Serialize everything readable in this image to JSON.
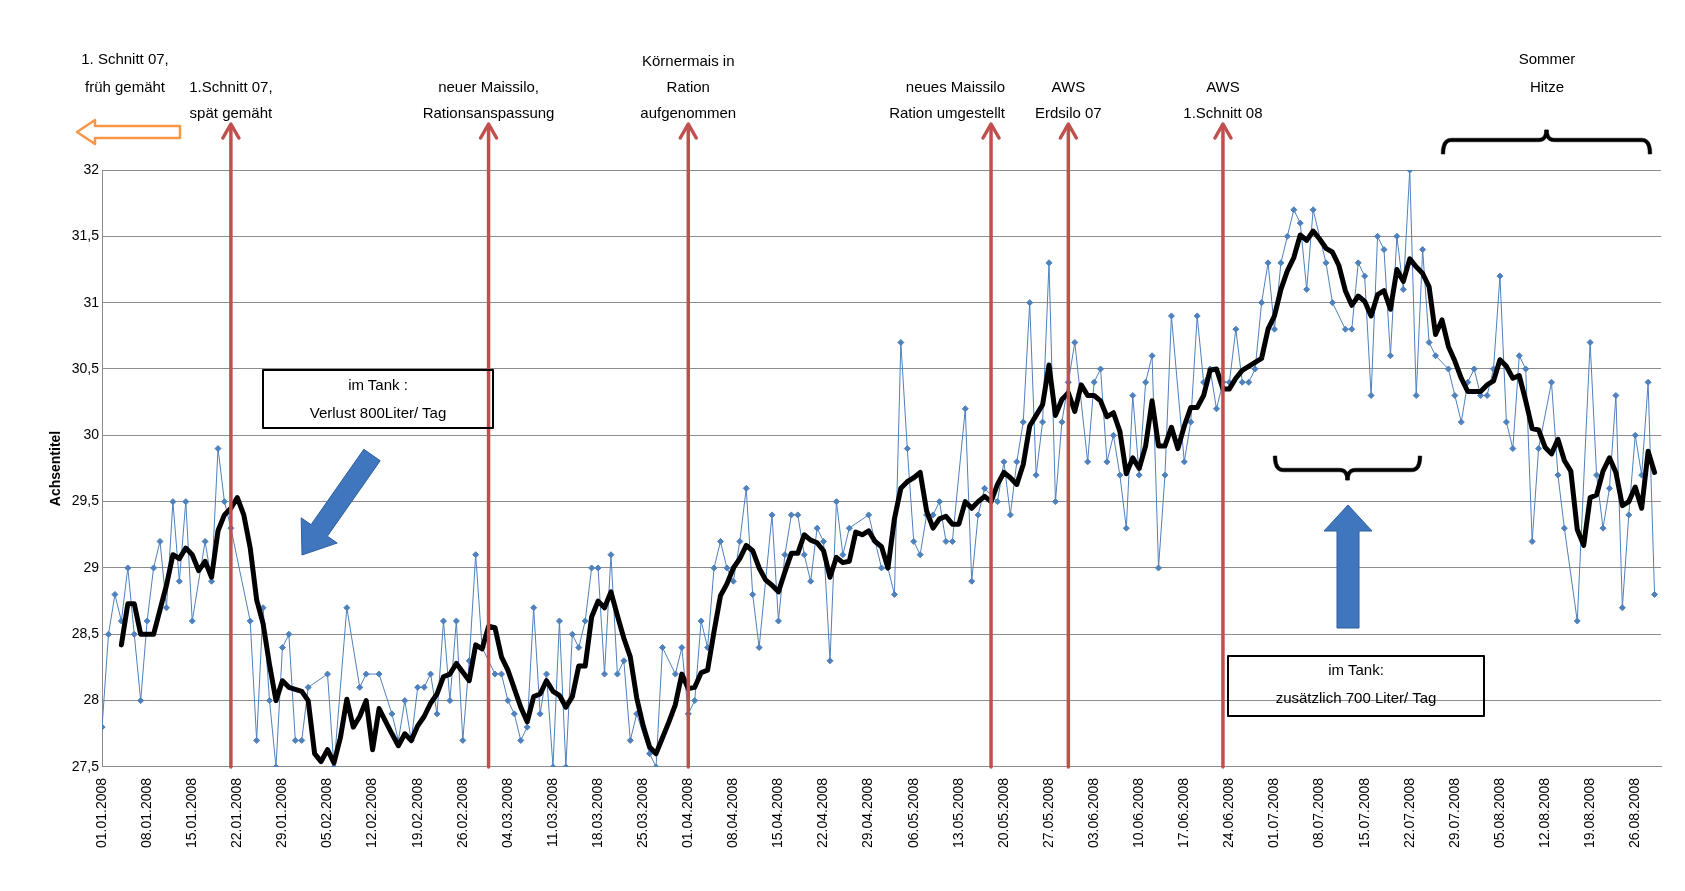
{
  "chart_data": {
    "type": "line",
    "ylabel": "Achsentitel",
    "xlim": [
      "2008-01-01",
      "2008-08-30"
    ],
    "xticks": [
      {
        "value": "2008-01-01",
        "label": "01.01.2008"
      },
      {
        "value": "2008-01-08",
        "label": "08.01.2008"
      },
      {
        "value": "2008-01-15",
        "label": "15.01.2008"
      },
      {
        "value": "2008-01-22",
        "label": "22.01.2008"
      },
      {
        "value": "2008-01-29",
        "label": "29.01.2008"
      },
      {
        "value": "2008-02-05",
        "label": "05.02.2008"
      },
      {
        "value": "2008-02-12",
        "label": "12.02.2008"
      },
      {
        "value": "2008-02-19",
        "label": "19.02.2008"
      },
      {
        "value": "2008-02-26",
        "label": "26.02.2008"
      },
      {
        "value": "2008-03-04",
        "label": "04.03.2008"
      },
      {
        "value": "2008-03-11",
        "label": "11.03.2008"
      },
      {
        "value": "2008-03-18",
        "label": "18.03.2008"
      },
      {
        "value": "2008-03-25",
        "label": "25.03.2008"
      },
      {
        "value": "2008-04-01",
        "label": "01.04.2008"
      },
      {
        "value": "2008-04-08",
        "label": "08.04.2008"
      },
      {
        "value": "2008-04-15",
        "label": "15.04.2008"
      },
      {
        "value": "2008-04-22",
        "label": "22.04.2008"
      },
      {
        "value": "2008-04-29",
        "label": "29.04.2008"
      },
      {
        "value": "2008-05-06",
        "label": "06.05.2008"
      },
      {
        "value": "2008-05-13",
        "label": "13.05.2008"
      },
      {
        "value": "2008-05-20",
        "label": "20.05.2008"
      },
      {
        "value": "2008-05-27",
        "label": "27.05.2008"
      },
      {
        "value": "2008-06-03",
        "label": "03.06.2008"
      },
      {
        "value": "2008-06-10",
        "label": "10.06.2008"
      },
      {
        "value": "2008-06-17",
        "label": "17.06.2008"
      },
      {
        "value": "2008-06-24",
        "label": "24.06.2008"
      },
      {
        "value": "2008-07-01",
        "label": "01.07.2008"
      },
      {
        "value": "2008-07-08",
        "label": "08.07.2008"
      },
      {
        "value": "2008-07-15",
        "label": "15.07.2008"
      },
      {
        "value": "2008-07-22",
        "label": "22.07.2008"
      },
      {
        "value": "2008-07-29",
        "label": "29.07.2008"
      },
      {
        "value": "2008-08-05",
        "label": "05.08.2008"
      },
      {
        "value": "2008-08-12",
        "label": "12.08.2008"
      },
      {
        "value": "2008-08-19",
        "label": "19.08.2008"
      },
      {
        "value": "2008-08-26",
        "label": "26.08.2008"
      }
    ],
    "ylim": [
      27.5,
      32
    ],
    "yticks": [
      {
        "value": 27.5,
        "label": "27,5"
      },
      28,
      {
        "value": 28.5,
        "label": "28,5"
      },
      29,
      {
        "value": 29.5,
        "label": "29,5"
      },
      30,
      {
        "value": 30.5,
        "label": "30,5"
      },
      31,
      {
        "value": 31.5,
        "label": "31,5"
      },
      32
    ],
    "grid": "y",
    "legend": false,
    "series": [
      {
        "color": "#4f81bd",
        "marker": "diamond",
        "x": [
          "2008-01-01",
          "2008-01-02",
          "2008-01-03",
          "2008-01-04",
          "2008-01-05",
          "2008-01-06",
          "2008-01-07",
          "2008-01-08",
          "2008-01-09",
          "2008-01-10",
          "2008-01-11",
          "2008-01-12",
          "2008-01-13",
          "2008-01-14",
          "2008-01-15",
          "2008-01-17",
          "2008-01-18",
          "2008-01-19",
          "2008-01-20",
          "2008-01-21",
          "2008-01-24",
          "2008-01-25",
          "2008-01-26",
          "2008-01-27",
          "2008-01-28",
          "2008-01-29",
          "2008-01-30",
          "2008-01-31",
          "2008-02-01",
          "2008-02-02",
          "2008-02-05",
          "2008-02-06",
          "2008-02-08",
          "2008-02-10",
          "2008-02-11",
          "2008-02-13",
          "2008-02-15",
          "2008-02-16",
          "2008-02-17",
          "2008-02-18",
          "2008-02-19",
          "2008-02-20",
          "2008-02-21",
          "2008-02-22",
          "2008-02-23",
          "2008-02-24",
          "2008-02-25",
          "2008-02-26",
          "2008-02-27",
          "2008-02-28",
          "2008-02-29",
          "2008-03-02",
          "2008-03-03",
          "2008-03-04",
          "2008-03-05",
          "2008-03-06",
          "2008-03-07",
          "2008-03-08",
          "2008-03-09",
          "2008-03-10",
          "2008-03-11",
          "2008-03-12",
          "2008-03-13",
          "2008-03-14",
          "2008-03-15",
          "2008-03-16",
          "2008-03-17",
          "2008-03-18",
          "2008-03-19",
          "2008-03-20",
          "2008-03-21",
          "2008-03-22",
          "2008-03-23",
          "2008-03-24",
          "2008-03-26",
          "2008-03-27",
          "2008-03-28",
          "2008-03-30",
          "2008-03-31",
          "2008-04-01",
          "2008-04-02",
          "2008-04-03",
          "2008-04-04",
          "2008-04-05",
          "2008-04-06",
          "2008-04-07",
          "2008-04-08",
          "2008-04-09",
          "2008-04-10",
          "2008-04-11",
          "2008-04-12",
          "2008-04-14",
          "2008-04-15",
          "2008-04-16",
          "2008-04-17",
          "2008-04-18",
          "2008-04-19",
          "2008-04-20",
          "2008-04-21",
          "2008-04-22",
          "2008-04-23",
          "2008-04-24",
          "2008-04-25",
          "2008-04-26",
          "2008-04-29",
          "2008-04-30",
          "2008-05-01",
          "2008-05-02",
          "2008-05-03",
          "2008-05-04",
          "2008-05-05",
          "2008-05-06",
          "2008-05-07",
          "2008-05-08",
          "2008-05-09",
          "2008-05-10",
          "2008-05-11",
          "2008-05-12",
          "2008-05-14",
          "2008-05-15",
          "2008-05-16",
          "2008-05-17",
          "2008-05-19",
          "2008-05-20",
          "2008-05-21",
          "2008-05-22",
          "2008-05-23",
          "2008-05-24",
          "2008-05-25",
          "2008-05-26",
          "2008-05-27",
          "2008-05-28",
          "2008-05-29",
          "2008-05-30",
          "2008-05-31",
          "2008-06-02",
          "2008-06-03",
          "2008-06-04",
          "2008-06-05",
          "2008-06-06",
          "2008-06-07",
          "2008-06-08",
          "2008-06-09",
          "2008-06-10",
          "2008-06-11",
          "2008-06-12",
          "2008-06-13",
          "2008-06-14",
          "2008-06-15",
          "2008-06-17",
          "2008-06-18",
          "2008-06-19",
          "2008-06-20",
          "2008-06-21",
          "2008-06-22",
          "2008-06-23",
          "2008-06-24",
          "2008-06-25",
          "2008-06-26",
          "2008-06-27",
          "2008-06-28",
          "2008-06-29",
          "2008-06-30",
          "2008-07-01",
          "2008-07-02",
          "2008-07-03",
          "2008-07-04",
          "2008-07-05",
          "2008-07-06",
          "2008-07-07",
          "2008-07-09",
          "2008-07-10",
          "2008-07-12",
          "2008-07-13",
          "2008-07-14",
          "2008-07-15",
          "2008-07-16",
          "2008-07-17",
          "2008-07-18",
          "2008-07-19",
          "2008-07-20",
          "2008-07-21",
          "2008-07-22",
          "2008-07-23",
          "2008-07-24",
          "2008-07-25",
          "2008-07-26",
          "2008-07-28",
          "2008-07-29",
          "2008-07-30",
          "2008-07-31",
          "2008-08-01",
          "2008-08-02",
          "2008-08-03",
          "2008-08-04",
          "2008-08-05",
          "2008-08-06",
          "2008-08-07",
          "2008-08-08",
          "2008-08-09",
          "2008-08-10",
          "2008-08-11",
          "2008-08-13",
          "2008-08-14",
          "2008-08-15",
          "2008-08-17",
          "2008-08-19",
          "2008-08-20",
          "2008-08-21",
          "2008-08-22",
          "2008-08-23",
          "2008-08-24",
          "2008-08-25",
          "2008-08-26",
          "2008-08-27",
          "2008-08-28",
          "2008-08-29"
        ],
        "values": [
          27.8,
          28.5,
          28.8,
          28.6,
          29.0,
          28.5,
          28.0,
          28.6,
          29.0,
          29.2,
          28.7,
          29.5,
          28.9,
          29.5,
          28.6,
          29.2,
          28.9,
          29.9,
          29.5,
          29.3,
          28.6,
          27.7,
          28.7,
          28.0,
          27.5,
          28.4,
          28.5,
          27.7,
          27.7,
          28.1,
          28.2,
          27.5,
          28.7,
          28.1,
          28.2,
          28.2,
          27.9,
          27.7,
          28.0,
          27.7,
          28.1,
          28.1,
          28.2,
          27.9,
          28.6,
          28.0,
          28.6,
          27.7,
          28.3,
          29.1,
          28.4,
          28.2,
          28.2,
          28.0,
          27.9,
          27.7,
          27.8,
          28.7,
          27.9,
          28.2,
          27.5,
          28.6,
          27.5,
          28.5,
          28.4,
          28.6,
          29.0,
          29.0,
          28.2,
          29.1,
          28.2,
          28.3,
          27.7,
          27.9,
          27.6,
          27.5,
          28.4,
          28.2,
          28.4,
          27.9,
          28.0,
          28.6,
          28.4,
          29.0,
          29.2,
          29.0,
          28.9,
          29.2,
          29.6,
          28.8,
          28.4,
          29.4,
          28.6,
          29.1,
          29.4,
          29.4,
          29.1,
          28.9,
          29.3,
          29.2,
          28.3,
          29.5,
          29.1,
          29.3,
          29.4,
          29.2,
          29.0,
          29.0,
          28.8,
          30.7,
          29.9,
          29.2,
          29.1,
          29.4,
          29.4,
          29.5,
          29.2,
          29.2,
          30.2,
          28.9,
          29.4,
          29.6,
          29.5,
          29.8,
          29.4,
          29.8,
          30.1,
          31.0,
          29.7,
          30.1,
          31.3,
          29.5,
          30.1,
          30.4,
          30.7,
          29.8,
          30.4,
          30.5,
          29.8,
          30.0,
          29.7,
          29.3,
          30.3,
          29.7,
          30.4,
          30.6,
          29.0,
          29.7,
          30.9,
          29.8,
          30.1,
          30.9,
          30.4,
          30.5,
          30.2,
          30.4,
          30.4,
          30.8,
          30.4,
          30.4,
          30.5,
          31.0,
          31.3,
          30.8,
          31.3,
          31.5,
          31.7,
          31.6,
          31.1,
          31.7,
          31.3,
          31.0,
          30.8,
          30.8,
          31.3,
          31.2,
          30.3,
          31.5,
          31.4,
          30.6,
          31.5,
          31.1,
          32.0,
          30.3,
          31.4,
          30.7,
          30.6,
          30.5,
          30.3,
          30.1,
          30.4,
          30.5,
          30.3,
          30.3,
          30.5,
          31.2,
          30.1,
          29.9,
          30.6,
          30.5,
          29.2,
          29.9,
          30.4,
          29.7,
          29.3,
          28.6,
          30.7,
          29.7,
          29.3,
          29.6,
          30.3,
          28.7,
          29.4,
          30.0,
          29.7,
          30.4,
          28.8
        ]
      },
      {
        "color": "#000000",
        "marker": "none",
        "x": [
          "2008-01-04",
          "2008-01-05",
          "2008-01-06",
          "2008-01-07",
          "2008-01-09",
          "2008-01-11",
          "2008-01-12",
          "2008-01-13",
          "2008-01-14",
          "2008-01-15",
          "2008-01-16",
          "2008-01-17",
          "2008-01-18",
          "2008-01-19",
          "2008-01-20",
          "2008-01-21",
          "2008-01-22",
          "2008-01-23",
          "2008-01-24",
          "2008-01-25",
          "2008-01-26",
          "2008-01-27",
          "2008-01-28",
          "2008-01-29",
          "2008-01-30",
          "2008-02-01",
          "2008-02-02",
          "2008-02-03",
          "2008-02-04",
          "2008-02-05",
          "2008-02-06",
          "2008-02-07",
          "2008-02-08",
          "2008-02-09",
          "2008-02-10",
          "2008-02-11",
          "2008-02-12",
          "2008-02-13",
          "2008-02-15",
          "2008-02-16",
          "2008-02-17",
          "2008-02-18",
          "2008-02-19",
          "2008-02-20",
          "2008-02-21",
          "2008-02-22",
          "2008-02-23",
          "2008-02-24",
          "2008-02-25",
          "2008-02-27",
          "2008-02-28",
          "2008-02-29",
          "2008-03-01",
          "2008-03-02",
          "2008-03-03",
          "2008-03-04",
          "2008-03-05",
          "2008-03-06",
          "2008-03-07",
          "2008-03-08",
          "2008-03-09",
          "2008-03-10",
          "2008-03-11",
          "2008-03-12",
          "2008-03-13",
          "2008-03-14",
          "2008-03-15",
          "2008-03-16",
          "2008-03-17",
          "2008-03-18",
          "2008-03-19",
          "2008-03-20",
          "2008-03-21",
          "2008-03-22",
          "2008-03-23",
          "2008-03-24",
          "2008-03-25",
          "2008-03-26",
          "2008-03-27",
          "2008-03-28",
          "2008-03-29",
          "2008-03-30",
          "2008-03-31",
          "2008-04-01",
          "2008-04-02",
          "2008-04-03",
          "2008-04-04",
          "2008-04-05",
          "2008-04-06",
          "2008-04-07",
          "2008-04-08",
          "2008-04-09",
          "2008-04-10",
          "2008-04-11",
          "2008-04-12",
          "2008-04-13",
          "2008-04-14",
          "2008-04-15",
          "2008-04-16",
          "2008-04-17",
          "2008-04-18",
          "2008-04-19",
          "2008-04-20",
          "2008-04-21",
          "2008-04-22",
          "2008-04-23",
          "2008-04-24",
          "2008-04-25",
          "2008-04-26",
          "2008-04-27",
          "2008-04-28",
          "2008-04-29",
          "2008-04-30",
          "2008-05-01",
          "2008-05-02",
          "2008-05-03",
          "2008-05-04",
          "2008-05-05",
          "2008-05-06",
          "2008-05-07",
          "2008-05-08",
          "2008-05-09",
          "2008-05-10",
          "2008-05-11",
          "2008-05-12",
          "2008-05-13",
          "2008-05-14",
          "2008-05-15",
          "2008-05-16",
          "2008-05-17",
          "2008-05-18",
          "2008-05-19",
          "2008-05-20",
          "2008-05-21",
          "2008-05-22",
          "2008-05-23",
          "2008-05-24",
          "2008-05-25",
          "2008-05-26",
          "2008-05-27",
          "2008-05-28",
          "2008-05-29",
          "2008-05-30",
          "2008-05-31",
          "2008-06-01",
          "2008-06-02",
          "2008-06-03",
          "2008-06-04",
          "2008-06-05",
          "2008-06-06",
          "2008-06-07",
          "2008-06-08",
          "2008-06-09",
          "2008-06-10",
          "2008-06-11",
          "2008-06-12",
          "2008-06-13",
          "2008-06-14",
          "2008-06-15",
          "2008-06-16",
          "2008-06-17",
          "2008-06-18",
          "2008-06-19",
          "2008-06-20",
          "2008-06-21",
          "2008-06-22",
          "2008-06-23",
          "2008-06-24",
          "2008-06-25",
          "2008-06-26",
          "2008-06-27",
          "2008-06-28",
          "2008-06-29",
          "2008-06-30",
          "2008-07-01",
          "2008-07-02",
          "2008-07-03",
          "2008-07-04",
          "2008-07-05",
          "2008-07-06",
          "2008-07-07",
          "2008-07-08",
          "2008-07-09",
          "2008-07-10",
          "2008-07-11",
          "2008-07-12",
          "2008-07-13",
          "2008-07-14",
          "2008-07-15",
          "2008-07-16",
          "2008-07-17",
          "2008-07-18",
          "2008-07-19",
          "2008-07-20",
          "2008-07-21",
          "2008-07-22",
          "2008-07-23",
          "2008-07-24",
          "2008-07-25",
          "2008-07-26",
          "2008-07-27",
          "2008-07-28",
          "2008-07-29",
          "2008-07-30",
          "2008-07-31",
          "2008-08-01",
          "2008-08-02",
          "2008-08-03",
          "2008-08-04",
          "2008-08-05",
          "2008-08-06",
          "2008-08-07",
          "2008-08-08",
          "2008-08-09",
          "2008-08-10",
          "2008-08-11",
          "2008-08-12",
          "2008-08-13",
          "2008-08-14",
          "2008-08-15",
          "2008-08-16",
          "2008-08-17",
          "2008-08-18",
          "2008-08-19",
          "2008-08-20",
          "2008-08-21",
          "2008-08-22",
          "2008-08-23",
          "2008-08-24",
          "2008-08-25",
          "2008-08-26",
          "2008-08-27",
          "2008-08-28",
          "2008-08-29"
        ],
        "values": [
          28.42,
          28.73,
          28.73,
          28.5,
          28.5,
          28.87,
          29.1,
          29.07,
          29.15,
          29.1,
          28.98,
          29.05,
          28.93,
          29.28,
          29.4,
          29.45,
          29.53,
          29.4,
          29.15,
          28.76,
          28.58,
          28.27,
          28.0,
          28.15,
          28.1,
          28.07,
          28.0,
          27.6,
          27.54,
          27.63,
          27.53,
          27.72,
          28.01,
          27.8,
          27.88,
          28.0,
          27.63,
          27.94,
          27.75,
          27.66,
          27.75,
          27.7,
          27.81,
          27.88,
          27.98,
          28.05,
          28.18,
          28.2,
          28.28,
          28.15,
          28.42,
          28.39,
          28.56,
          28.55,
          28.33,
          28.23,
          28.09,
          27.95,
          27.84,
          28.03,
          28.05,
          28.15,
          28.07,
          28.04,
          27.95,
          28.03,
          28.26,
          28.26,
          28.63,
          28.75,
          28.7,
          28.82,
          28.64,
          28.47,
          28.33,
          28.02,
          27.81,
          27.65,
          27.6,
          27.72,
          27.84,
          27.97,
          28.2,
          28.09,
          28.1,
          28.21,
          28.23,
          28.52,
          28.79,
          28.88,
          29.0,
          29.07,
          29.17,
          29.13,
          29.0,
          28.91,
          28.87,
          28.82,
          28.97,
          29.11,
          29.11,
          29.25,
          29.21,
          29.19,
          29.13,
          28.93,
          29.08,
          29.04,
          29.05,
          29.27,
          29.25,
          29.28,
          29.2,
          29.16,
          29.0,
          29.37,
          29.6,
          29.65,
          29.68,
          29.72,
          29.43,
          29.3,
          29.37,
          29.39,
          29.33,
          29.33,
          29.5,
          29.45,
          29.5,
          29.54,
          29.5,
          29.63,
          29.72,
          29.68,
          29.63,
          29.78,
          30.07,
          30.15,
          30.23,
          30.53,
          30.15,
          30.27,
          30.32,
          30.18,
          30.38,
          30.3,
          30.3,
          30.26,
          30.14,
          30.17,
          30.03,
          29.71,
          29.83,
          29.75,
          29.92,
          30.26,
          29.92,
          29.92,
          30.06,
          29.9,
          30.07,
          30.21,
          30.21,
          30.3,
          30.49,
          30.5,
          30.35,
          30.35,
          30.43,
          30.49,
          30.52,
          30.55,
          30.58,
          30.8,
          30.9,
          31.1,
          31.24,
          31.34,
          31.51,
          31.47,
          31.54,
          31.48,
          31.41,
          31.38,
          31.28,
          31.09,
          30.98,
          31.05,
          31.01,
          30.9,
          31.06,
          31.09,
          30.95,
          31.25,
          31.16,
          31.33,
          31.27,
          31.22,
          31.12,
          30.76,
          30.87,
          30.67,
          30.56,
          30.43,
          30.33,
          30.33,
          30.33,
          30.38,
          30.41,
          30.57,
          30.52,
          30.43,
          30.45,
          30.26,
          30.05,
          30.04,
          29.91,
          29.86,
          29.97,
          29.81,
          29.73,
          29.29,
          29.17,
          29.53,
          29.55,
          29.73,
          29.83,
          29.72,
          29.47,
          29.5,
          29.61,
          29.45,
          29.88,
          29.72
        ]
      }
    ],
    "ref_lines": [
      {
        "axis": "x",
        "value": "2008-01-21",
        "label": "1.Schnitt 07,\nspät gemäht",
        "color": "#c0504d"
      },
      {
        "axis": "x",
        "value": "2008-03-01",
        "label": "neuer Maissilo,\nRationsanspassung",
        "color": "#c0504d"
      },
      {
        "axis": "x",
        "value": "2008-04-01",
        "label": "Körnermais in\nRation\naufgenommen",
        "color": "#c0504d"
      },
      {
        "axis": "x",
        "value": "2008-05-18",
        "label": "neues Maissilo\nRation umgestellt",
        "color": "#c0504d"
      },
      {
        "axis": "x",
        "value": "2008-05-30",
        "label": "AWS\nErdsilo 07",
        "color": "#c0504d"
      },
      {
        "axis": "x",
        "value": "2008-06-23",
        "label": "AWS\n1.Schnitt 08",
        "color": "#c0504d"
      }
    ],
    "annotations": [
      "1. Schnitt 07,\nfrüh gemäht",
      "im Tank :\nVerlust 800Liter/ Tag",
      "Sommer\nHitze",
      "im Tank:\nzusätzlich 700 Liter/ Tag"
    ]
  }
}
